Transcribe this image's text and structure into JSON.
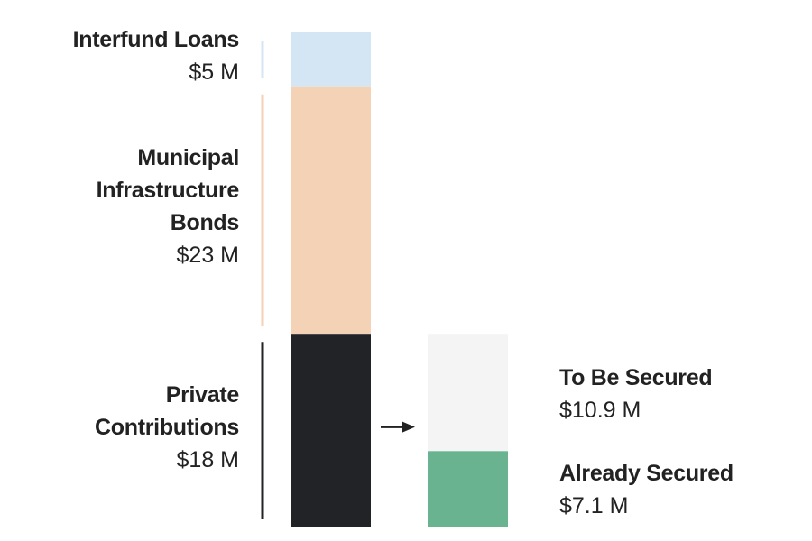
{
  "chart_data": {
    "type": "bar",
    "title": "",
    "unit": "$ M",
    "total": 46,
    "stacks": [
      {
        "name": "main",
        "segments": [
          {
            "id": "interfund-loans",
            "name_lines": [
              "Interfund Loans"
            ],
            "value": 5,
            "value_label": "$5 M",
            "color": "#d4e6f4"
          },
          {
            "id": "municipal-bonds",
            "name_lines": [
              "Municipal",
              "Infrastructure",
              "Bonds"
            ],
            "value": 23,
            "value_label": "$23 M",
            "color": "#f3d2b6"
          },
          {
            "id": "private-contributions",
            "name_lines": [
              "Private",
              "Contributions"
            ],
            "value": 18,
            "value_label": "$18 M",
            "color": "#222326"
          }
        ]
      },
      {
        "name": "private-breakdown",
        "segments": [
          {
            "id": "to-be-secured",
            "name_lines": [
              "To Be Secured"
            ],
            "value": 10.9,
            "value_label": "$10.9 M",
            "color": "#f4f4f4"
          },
          {
            "id": "already-secured",
            "name_lines": [
              "Already Secured"
            ],
            "value": 7.1,
            "value_label": "$7.1 M",
            "color": "#6ab391"
          }
        ]
      }
    ],
    "accent_colors": {
      "text": "#222222",
      "arrow": "#222222"
    }
  }
}
